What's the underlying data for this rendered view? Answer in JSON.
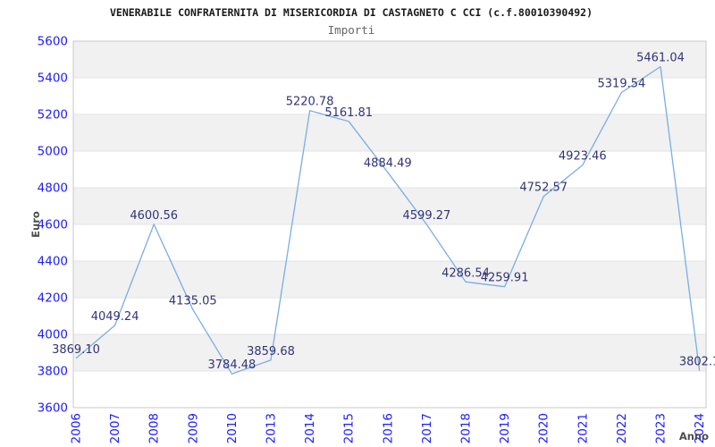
{
  "header": {
    "title": "VENERABILE CONFRATERNITA DI MISERICORDIA DI CASTAGNETO C CCI (c.f.80010390492)",
    "subtitle": "Importi"
  },
  "chart_data": {
    "type": "line",
    "title": "Importi",
    "categories": [
      "2006",
      "2007",
      "2008",
      "2009",
      "2010",
      "2013",
      "2014",
      "2015",
      "2016",
      "2017",
      "2018",
      "2019",
      "2020",
      "2021",
      "2022",
      "2023",
      "2024"
    ],
    "values": [
      3869.1,
      4049.24,
      4600.56,
      4135.05,
      3784.48,
      3859.68,
      5220.78,
      5161.81,
      4884.49,
      4599.27,
      4286.54,
      4259.91,
      4752.57,
      4923.46,
      5319.54,
      5461.04,
      3802.1
    ],
    "point_labels": [
      "3869.10",
      "4049.24",
      "4600.56",
      "4135.05",
      "3784.48",
      "3859.68",
      "5220.78",
      "5161.81",
      "4884.49",
      "4599.27",
      "4286.54",
      "4259.91",
      "4752.57",
      "4923.46",
      "5319.54",
      "5461.04",
      "3802.1"
    ],
    "xlabel": "Anno",
    "ylabel": "Euro",
    "ylim": [
      3600,
      5600
    ],
    "ytick_step": 200,
    "ytick_labels": [
      "5600",
      "5400",
      "5200",
      "5000",
      "4800",
      "4600",
      "4400",
      "4200",
      "4000",
      "3800",
      "3600"
    ],
    "grid": "horizontal-bands-alternating",
    "legend": "none",
    "colors": {
      "line": "#7aade4",
      "tick_label": "#1c1cff",
      "data_label": "#333377",
      "axis_title": "#4d4d4d",
      "band_fill": "#f1f1f1",
      "grid_line": "#e3e3e3",
      "plot_border": "#c9c9c9"
    }
  }
}
